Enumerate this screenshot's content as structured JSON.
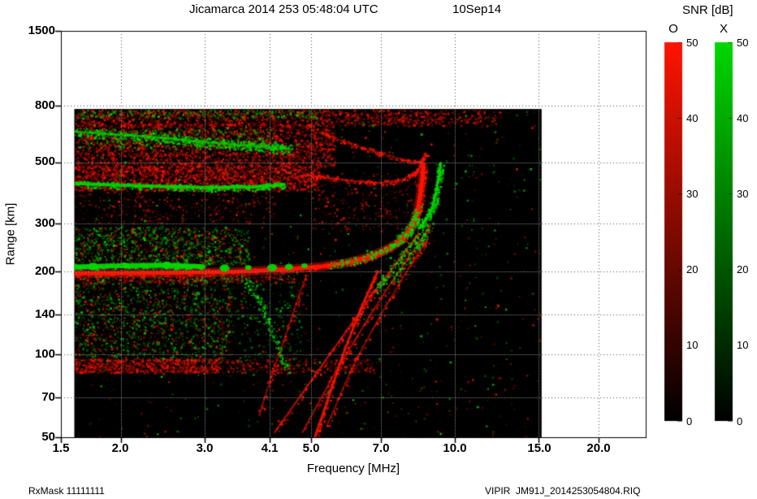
{
  "header": {
    "title": "Jicamarca 2014 253 05:48:04 UTC",
    "date": "10Sep14"
  },
  "colorbar": {
    "title": "SNR [dB]",
    "o_label": "O",
    "x_label": "X",
    "ticks": [
      "50",
      "40",
      "30",
      "20",
      "10",
      "0"
    ]
  },
  "axes": {
    "y_label": "Range [km]",
    "x_label": "Frequency [MHz]",
    "y_ticks": [
      "1500",
      "800",
      "500",
      "300",
      "200",
      "140",
      "100",
      "70",
      "50"
    ],
    "x_ticks": [
      "1.5",
      "2.0",
      "3.0",
      "4.1",
      "5.0",
      "7.0",
      "10.0",
      "15.0",
      "20.0"
    ]
  },
  "footer": {
    "left": "RxMask 11111111",
    "right": "VIPIR  JM91J_2014253054804.RIQ"
  },
  "chart_data": {
    "type": "heatmap",
    "title": "Jicamarca 2014 253 05:48:04 UTC 10Sep14",
    "xlabel": "Frequency [MHz]",
    "ylabel": "Range [km]",
    "x_scale": "log",
    "y_scale": "log",
    "xlim": [
      1.5,
      25.1
    ],
    "ylim": [
      50,
      1500
    ],
    "x_ticks": [
      1.5,
      2.0,
      3.0,
      4.1,
      5.0,
      7.0,
      10.0,
      15.0,
      20.0
    ],
    "y_ticks": [
      1500,
      800,
      500,
      300,
      200,
      140,
      100,
      70,
      50
    ],
    "snr_range_db": [
      0,
      50
    ],
    "colors": {
      "O": "#ff1400",
      "X": "#00d800",
      "background": "#000000",
      "page": "#ffffff"
    },
    "data_extent": {
      "f_mhz": [
        1.6,
        15.2
      ],
      "range_km": [
        50,
        780
      ]
    },
    "speckle_regions": [
      {
        "name": "top-band-red",
        "mode": "O",
        "f": [
          1.6,
          9.5
        ],
        "r": [
          680,
          778
        ],
        "n": 1500
      },
      {
        "name": "top-band-red-sparse",
        "mode": "O",
        "f": [
          9.5,
          12.5
        ],
        "r": [
          680,
          778
        ],
        "n": 120
      },
      {
        "name": "top-band-green",
        "mode": "X",
        "f": [
          1.6,
          5.2
        ],
        "r": [
          726,
          778
        ],
        "n": 320
      },
      {
        "name": "multihop-cloud-red",
        "mode": "O",
        "f": [
          1.6,
          5.6
        ],
        "r": [
          480,
          690
        ],
        "n": 2800
      },
      {
        "name": "multihop-cloud-green",
        "mode": "X",
        "f": [
          1.6,
          4.2
        ],
        "r": [
          560,
          665
        ],
        "n": 420
      },
      {
        "name": "second-hop-red",
        "mode": "O",
        "f": [
          1.6,
          5.2
        ],
        "r": [
          395,
          485
        ],
        "n": 2400
      },
      {
        "name": "between-sparse-red",
        "mode": "O",
        "f": [
          1.6,
          4.2
        ],
        "r": [
          300,
          398
        ],
        "n": 320
      },
      {
        "name": "f-cloud-green",
        "mode": "X",
        "f": [
          1.6,
          3.7
        ],
        "r": [
          212,
          292
        ],
        "n": 900
      },
      {
        "name": "f-cloud-red",
        "mode": "O",
        "f": [
          1.6,
          3.7
        ],
        "r": [
          212,
          292
        ],
        "n": 420
      },
      {
        "name": "under-trace-red",
        "mode": "O",
        "f": [
          1.6,
          4.6
        ],
        "r": [
          183,
          196
        ],
        "n": 350
      },
      {
        "name": "e-region-green",
        "mode": "X",
        "f": [
          1.6,
          3.4
        ],
        "r": [
          95,
          205
        ],
        "n": 1150
      },
      {
        "name": "e-region-red",
        "mode": "O",
        "f": [
          1.6,
          3.4
        ],
        "r": [
          95,
          205
        ],
        "n": 700
      },
      {
        "name": "e-region-tail-green",
        "mode": "X",
        "f": [
          3.4,
          4.8
        ],
        "r": [
          95,
          205
        ],
        "n": 200
      },
      {
        "name": "d-band-red",
        "mode": "O",
        "f": [
          1.6,
          3.2
        ],
        "r": [
          86,
          97
        ],
        "n": 950
      },
      {
        "name": "d-band-red-ext",
        "mode": "O",
        "f": [
          3.2,
          6.8
        ],
        "r": [
          86,
          97
        ],
        "n": 330
      },
      {
        "name": "mid-right-diffuse-red",
        "mode": "O",
        "f": [
          5.0,
          9.0
        ],
        "r": [
          280,
          460
        ],
        "n": 300
      },
      {
        "name": "noise-green",
        "mode": "X",
        "f": [
          1.6,
          15.2
        ],
        "r": [
          50,
          778
        ],
        "n": 500
      },
      {
        "name": "noise-red",
        "mode": "O",
        "f": [
          1.6,
          15.2
        ],
        "r": [
          50,
          778
        ],
        "n": 400
      }
    ],
    "traces": [
      {
        "name": "third-hop-arc-red",
        "mode": "O",
        "width": 2,
        "alpha": 0.4,
        "points": [
          [
            5.2,
            640
          ],
          [
            6.2,
            575
          ],
          [
            7.2,
            530
          ],
          [
            8.0,
            505
          ],
          [
            8.6,
            500
          ]
        ],
        "speckle_n": 150,
        "speckle_spread": 3
      },
      {
        "name": "second-hop-cusp-red",
        "mode": "O",
        "width": 2,
        "alpha": 0.55,
        "points": [
          [
            4.8,
            450
          ],
          [
            6.0,
            428
          ],
          [
            7.0,
            420
          ],
          [
            7.8,
            432
          ],
          [
            8.4,
            470
          ],
          [
            8.7,
            540
          ]
        ],
        "speckle_n": 200,
        "speckle_spread": 3
      },
      {
        "name": "multihop-green-band",
        "mode": "X",
        "width": 3,
        "alpha": 0.7,
        "points": [
          [
            1.6,
            645
          ],
          [
            2.3,
            618
          ],
          [
            3.0,
            592
          ],
          [
            3.8,
            572
          ],
          [
            4.5,
            558
          ]
        ],
        "speckle_n": 550,
        "speckle_spread": 6
      },
      {
        "name": "second-hop-green-line",
        "mode": "X",
        "width": 4,
        "alpha": 0.9,
        "points": [
          [
            1.6,
            418
          ],
          [
            2.2,
            410
          ],
          [
            3.0,
            404
          ],
          [
            3.8,
            406
          ],
          [
            4.4,
            414
          ]
        ],
        "speckle_n": 420,
        "speckle_spread": 4
      },
      {
        "name": "oblique-short-red",
        "mode": "O",
        "width": 2,
        "alpha": 0.5,
        "points": [
          [
            3.9,
            60
          ],
          [
            4.15,
            85
          ],
          [
            4.45,
            120
          ],
          [
            4.7,
            160
          ],
          [
            4.9,
            195
          ]
        ],
        "speckle_n": 90,
        "speckle_spread": 3
      },
      {
        "name": "oblique-1-red",
        "mode": "O",
        "width": 2,
        "alpha": 0.7,
        "points": [
          [
            4.2,
            52
          ],
          [
            5.0,
            80
          ],
          [
            5.9,
            120
          ],
          [
            6.8,
            170
          ],
          [
            7.7,
            225
          ],
          [
            8.4,
            275
          ]
        ],
        "speckle_n": 160,
        "speckle_spread": 3
      },
      {
        "name": "oblique-2-red",
        "mode": "O",
        "width": 2,
        "alpha": 0.6,
        "points": [
          [
            4.8,
            52
          ],
          [
            5.6,
            85
          ],
          [
            6.5,
            130
          ],
          [
            7.4,
            185
          ],
          [
            8.3,
            245
          ],
          [
            8.9,
            295
          ]
        ],
        "speckle_n": 140,
        "speckle_spread": 3
      },
      {
        "name": "oblique-3-red",
        "mode": "O",
        "width": 2,
        "alpha": 0.5,
        "points": [
          [
            5.4,
            55
          ],
          [
            6.2,
            95
          ],
          [
            7.1,
            145
          ],
          [
            8.0,
            205
          ],
          [
            8.8,
            265
          ]
        ],
        "speckle_n": 110,
        "speckle_spread": 3
      },
      {
        "name": "oblique-strong-red",
        "mode": "O",
        "width": 3,
        "alpha": 0.85,
        "points": [
          [
            5.1,
            50
          ],
          [
            5.45,
            70
          ],
          [
            5.9,
            105
          ],
          [
            6.4,
            150
          ],
          [
            6.9,
            200
          ]
        ],
        "speckle_n": 160,
        "speckle_spread": 3
      },
      {
        "name": "oblique-1-green",
        "mode": "X",
        "width": 0,
        "points": [
          [
            6.8,
            170
          ],
          [
            7.7,
            225
          ],
          [
            8.4,
            275
          ]
        ],
        "speckle_n": 120,
        "speckle_spread": 4
      },
      {
        "name": "oblique-2-green",
        "mode": "X",
        "width": 0,
        "points": [
          [
            7.4,
            185
          ],
          [
            8.3,
            245
          ],
          [
            8.9,
            295
          ]
        ],
        "speckle_n": 100,
        "speckle_spread": 4
      },
      {
        "name": "e-slant-green",
        "mode": "X",
        "width": 0,
        "points": [
          [
            3.6,
            195
          ],
          [
            3.9,
            155
          ],
          [
            4.2,
            115
          ],
          [
            4.45,
            88
          ]
        ],
        "speckle_n": 150,
        "speckle_spread": 4
      },
      {
        "name": "f-trace-o-main",
        "mode": "O",
        "width": 5,
        "alpha": 1,
        "glow": true,
        "points": [
          [
            1.6,
            197
          ],
          [
            2.5,
            198
          ],
          [
            3.5,
            200
          ],
          [
            4.5,
            204
          ],
          [
            5.3,
            209
          ],
          [
            6.0,
            216
          ],
          [
            6.6,
            226
          ],
          [
            7.1,
            238
          ],
          [
            7.6,
            254
          ],
          [
            7.95,
            275
          ],
          [
            8.2,
            300
          ],
          [
            8.35,
            330
          ],
          [
            8.45,
            370
          ],
          [
            8.55,
            430
          ],
          [
            8.6,
            480
          ]
        ],
        "speckle_n": 500,
        "speckle_spread": 4
      },
      {
        "name": "f-trace-x-low",
        "mode": "X",
        "width": 6,
        "alpha": 0.95,
        "points": [
          [
            1.6,
            208
          ],
          [
            2.0,
            210
          ],
          [
            2.45,
            211
          ],
          [
            2.9,
            209
          ]
        ],
        "speckle_n": 250,
        "speckle_spread": 3
      },
      {
        "name": "f-trace-x-mid",
        "mode": "X",
        "width": 0,
        "points": [
          [
            5.5,
            211
          ],
          [
            6.5,
            225
          ],
          [
            7.3,
            244
          ],
          [
            7.9,
            273
          ],
          [
            8.2,
            302
          ],
          [
            8.35,
            338
          ]
        ],
        "speckle_n": 300,
        "speckle_spread": 5
      },
      {
        "name": "f-trace-x-cusp",
        "mode": "X",
        "width": 3,
        "alpha": 0.9,
        "points": [
          [
            8.45,
            290
          ],
          [
            8.7,
            308
          ],
          [
            8.95,
            338
          ],
          [
            9.1,
            375
          ],
          [
            9.25,
            432
          ],
          [
            9.35,
            495
          ]
        ],
        "speckle_n": 260,
        "speckle_spread": 4
      }
    ],
    "blobs": {
      "mode": "X",
      "items": [
        [
          1.75,
          209,
          6
        ],
        [
          2.05,
          210,
          5
        ],
        [
          2.5,
          211,
          6
        ],
        [
          2.95,
          208,
          5
        ],
        [
          3.3,
          206,
          6
        ],
        [
          3.7,
          207,
          4
        ],
        [
          4.15,
          207,
          6
        ],
        [
          4.5,
          208,
          5
        ],
        [
          4.85,
          210,
          4
        ]
      ]
    }
  }
}
